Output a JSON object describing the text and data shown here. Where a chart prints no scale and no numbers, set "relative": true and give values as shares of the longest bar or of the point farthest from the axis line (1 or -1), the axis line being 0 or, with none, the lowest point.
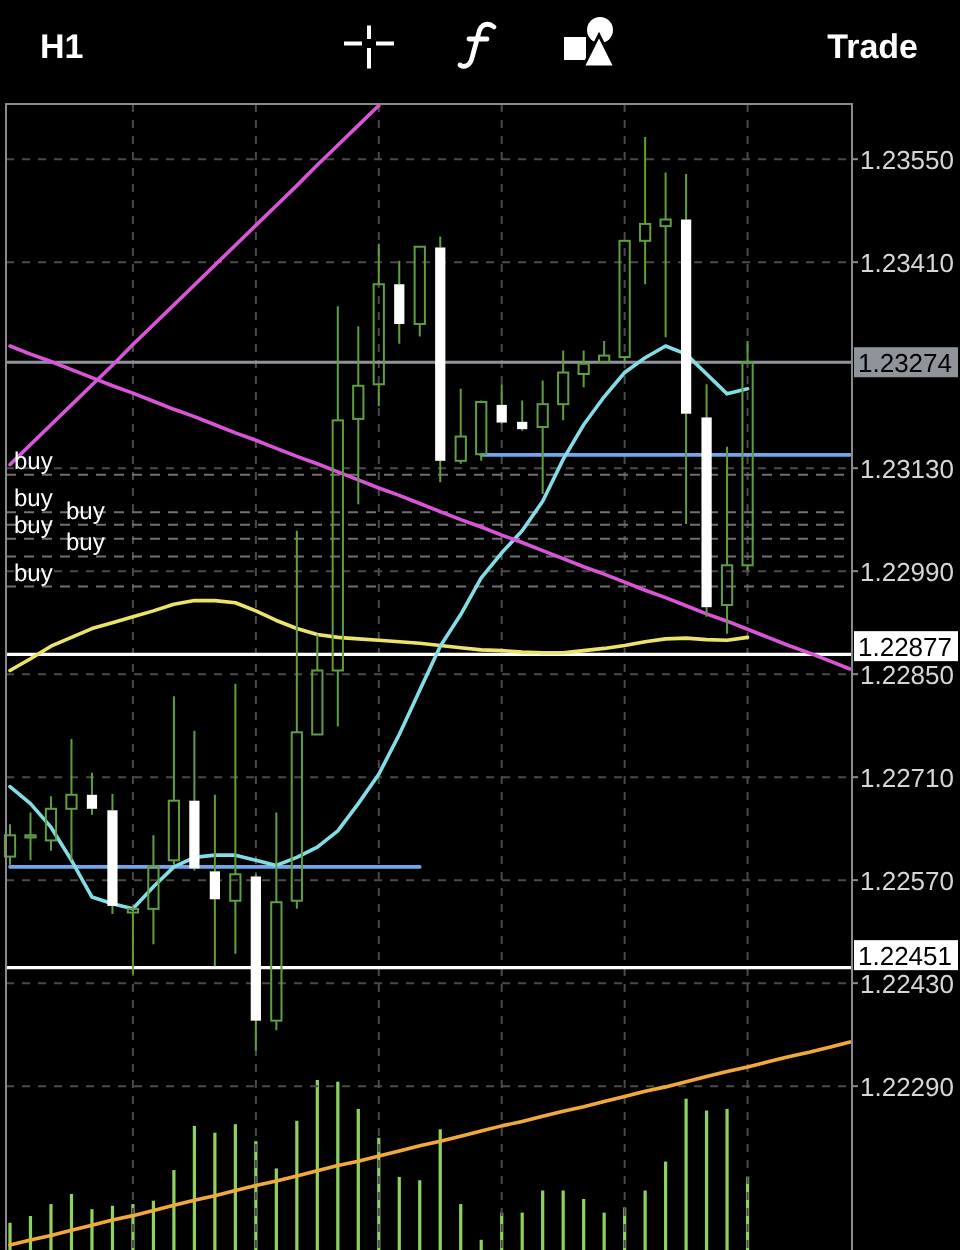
{
  "chart_data": [
    {
      "type": "candlestick",
      "title": "H1",
      "annotations": [
        "Trade"
      ],
      "categories": [
        null,
        null,
        null,
        null,
        null,
        null,
        null,
        null,
        null,
        null,
        null,
        null,
        null,
        null,
        null,
        null,
        null,
        null,
        null,
        null,
        null,
        null,
        null,
        null,
        null,
        null,
        null,
        null,
        null,
        null,
        null,
        null,
        null,
        null,
        null,
        null,
        null,
        null,
        null,
        null,
        null,
        null
      ],
      "ohlc": [
        [
          1.22602,
          1.22646,
          1.22591,
          1.22631
        ],
        [
          1.22628,
          1.22662,
          1.22597,
          1.22631
        ],
        [
          1.22624,
          1.22684,
          1.2261,
          1.22667
        ],
        [
          1.22667,
          1.22762,
          1.22597,
          1.22686
        ],
        [
          1.22686,
          1.22716,
          1.22659,
          1.22667
        ],
        [
          1.22665,
          1.22687,
          1.22524,
          1.22535
        ],
        [
          1.22526,
          1.22534,
          1.22442,
          1.22531
        ],
        [
          1.22531,
          1.22631,
          1.22483,
          1.22589
        ],
        [
          1.22597,
          1.2282,
          1.22591,
          1.22678
        ],
        [
          1.22678,
          1.22773,
          1.22583,
          1.22586
        ],
        [
          1.22582,
          1.22686,
          1.22453,
          1.22544
        ],
        [
          1.22542,
          1.22837,
          1.2247,
          1.22578
        ],
        [
          1.22575,
          1.22578,
          1.22338,
          1.22379
        ],
        [
          1.22379,
          1.22662,
          1.22366,
          1.2254
        ],
        [
          1.22542,
          1.23045,
          1.22531,
          1.22771
        ],
        [
          1.22768,
          1.22904,
          1.22768,
          1.22855
        ],
        [
          1.22855,
          1.2335,
          1.22779,
          1.23195
        ],
        [
          1.23197,
          1.23323,
          1.23081,
          1.23242
        ],
        [
          1.23244,
          1.23435,
          1.23214,
          1.2338
        ],
        [
          1.2338,
          1.23412,
          1.23299,
          1.23326
        ],
        [
          1.23326,
          1.23431,
          1.23309,
          1.23431
        ],
        [
          1.2343,
          1.23445,
          1.23111,
          1.2314
        ],
        [
          1.2314,
          1.23238,
          1.23136,
          1.23173
        ],
        [
          1.23149,
          1.23222,
          1.2314,
          1.2322
        ],
        [
          1.23216,
          1.23244,
          1.2319,
          1.23192
        ],
        [
          1.23193,
          1.23222,
          1.23181,
          1.23183
        ],
        [
          1.23186,
          1.23249,
          1.23095,
          1.23217
        ],
        [
          1.23217,
          1.2329,
          1.23195,
          1.2326
        ],
        [
          1.23258,
          1.2329,
          1.2324,
          1.23272
        ],
        [
          1.23274,
          1.23303,
          1.23272,
          1.23283
        ],
        [
          1.23281,
          1.23439,
          1.23276,
          1.23439
        ],
        [
          1.23439,
          1.2358,
          1.2338,
          1.23462
        ],
        [
          1.23459,
          1.23532,
          1.23308,
          1.23468
        ],
        [
          1.23468,
          1.2353,
          1.23054,
          1.23204
        ],
        [
          1.23199,
          1.23244,
          1.22928,
          1.22941
        ],
        [
          1.22944,
          1.23159,
          1.22905,
          1.22998
        ],
        [
          1.22998,
          1.23303,
          1.22991,
          1.23274
        ],
        null,
        null,
        null,
        null,
        null
      ],
      "color": "#5f9f3f",
      "colors": [
        "#5f9f3f",
        "#5f9f3f",
        "#5f9f3f",
        "#5f9f3f",
        "#ffffff",
        "#ffffff",
        "#5f9f3f",
        "#5f9f3f",
        "#5f9f3f",
        "#ffffff",
        "#ffffff",
        "#5f9f3f",
        "#ffffff",
        "#5f9f3f",
        "#5f9f3f",
        "#5f9f3f",
        "#5f9f3f",
        "#5f9f3f",
        "#5f9f3f",
        "#ffffff",
        "#5f9f3f",
        "#ffffff",
        "#5f9f3f",
        "#5f9f3f",
        "#ffffff",
        "#ffffff",
        "#5f9f3f",
        "#5f9f3f",
        "#5f9f3f",
        "#5f9f3f",
        "#5f9f3f",
        "#5f9f3f",
        "#5f9f3f",
        "#ffffff",
        "#ffffff",
        "#5f9f3f",
        "#5f9f3f",
        null,
        null,
        null,
        null,
        null
      ],
      "series": [
        {
          "type": "line",
          "color": "#6fa8ec",
          "values": [
            1.22588,
            1.22588,
            1.22588,
            1.22588,
            1.22588,
            1.22588,
            1.22588,
            1.22588,
            1.22588,
            1.22588,
            1.22588,
            1.22588,
            1.22588,
            1.22588,
            1.22588,
            1.22588,
            1.22588,
            1.22588,
            1.22588,
            1.22588,
            1.22588,
            null,
            null,
            null,
            null,
            null,
            null,
            null,
            null,
            null,
            null,
            null,
            null,
            null,
            null,
            null,
            null,
            null,
            null,
            null,
            null,
            null
          ]
        },
        {
          "type": "line",
          "color": "#6fa8ec",
          "values": [
            null,
            null,
            null,
            null,
            null,
            null,
            null,
            null,
            null,
            null,
            null,
            null,
            null,
            null,
            null,
            null,
            null,
            null,
            null,
            null,
            null,
            null,
            null,
            1.23148,
            1.23148,
            1.23148,
            1.23148,
            1.23148,
            1.23148,
            1.23148,
            1.23148,
            1.23148,
            1.23148,
            1.23148,
            1.23148,
            1.23148,
            1.23148,
            1.23148,
            1.23148,
            1.23148,
            1.23148,
            1.23148
          ]
        },
        {
          "type": "line",
          "color": "#ece36a",
          "values": [
            1.22855,
            1.22871,
            1.22888,
            1.229,
            1.22912,
            1.2292,
            1.22928,
            1.22936,
            1.22945,
            1.2295,
            1.2295,
            1.22947,
            1.22936,
            1.22923,
            1.22912,
            1.22904,
            1.229,
            1.22898,
            1.22896,
            1.22894,
            1.22892,
            1.22889,
            1.22886,
            1.22883,
            1.22882,
            1.2288,
            1.22879,
            1.22879,
            1.22882,
            1.22885,
            1.22889,
            1.22894,
            1.22898,
            1.22899,
            1.22897,
            1.22896,
            1.229,
            null,
            null,
            null,
            null,
            null
          ]
        },
        {
          "type": "line",
          "color": "#84dde6",
          "values": [
            1.22697,
            1.22674,
            1.22642,
            1.22597,
            1.22547,
            1.22538,
            1.22531,
            1.22561,
            1.22588,
            1.22601,
            1.22604,
            1.22604,
            1.22597,
            1.2259,
            1.22601,
            1.22615,
            1.22637,
            1.22674,
            1.22714,
            1.22768,
            1.22828,
            1.22888,
            1.22931,
            1.22981,
            1.23015,
            1.23045,
            1.23085,
            1.23142,
            1.23189,
            1.23227,
            1.2326,
            1.2328,
            1.23296,
            1.23285,
            1.23258,
            1.23231,
            1.23238,
            null,
            null,
            null,
            null,
            null
          ]
        },
        {
          "type": "line",
          "color": "#d855d8",
          "values": [
            1.23135,
            1.23162,
            1.23189,
            1.23216,
            1.23243,
            1.2327,
            1.23298,
            1.23325,
            1.23352,
            1.23379,
            1.23406,
            1.23433,
            1.2346,
            1.23487,
            1.23514,
            1.23542,
            1.23569,
            1.23596,
            1.23623,
            null,
            null,
            null,
            null,
            null,
            null,
            null,
            null,
            null,
            null,
            null,
            null,
            null,
            null,
            null,
            null,
            null,
            null,
            null,
            null,
            null,
            null,
            null
          ]
        },
        {
          "type": "line",
          "color": "#d855d8",
          "values": [
            1.23296,
            1.23285,
            1.23275,
            1.23264,
            1.23253,
            1.23242,
            1.23232,
            1.23221,
            1.2321,
            1.232,
            1.23189,
            1.23178,
            1.23168,
            1.23157,
            1.23146,
            1.23136,
            1.23125,
            1.23114,
            1.23103,
            1.23093,
            1.23082,
            1.23071,
            1.2306,
            1.2305,
            1.23039,
            1.23029,
            1.23018,
            1.23007,
            1.22996,
            1.22986,
            1.22975,
            1.22964,
            1.22954,
            1.22943,
            1.22932,
            1.22922,
            1.22911,
            1.229,
            1.22889,
            1.22879,
            1.22868,
            1.22857
          ]
        },
        {
          "type": "line",
          "color": "#f2a83a",
          "values": [
            1.22074,
            1.22081,
            1.22087,
            1.22094,
            1.22101,
            1.22108,
            1.22114,
            1.22121,
            1.22128,
            1.22135,
            1.22141,
            1.22148,
            1.22155,
            1.22161,
            1.22168,
            1.22175,
            1.22182,
            1.22188,
            1.22195,
            1.22202,
            1.22209,
            1.22215,
            1.22222,
            1.22229,
            1.22236,
            1.22242,
            1.22249,
            1.22256,
            1.22262,
            1.22269,
            1.22276,
            1.22283,
            1.22289,
            1.22296,
            1.22303,
            1.2231,
            1.22316,
            1.22323,
            1.2233,
            1.22336,
            1.22343,
            1.2235
          ]
        }
      ],
      "ylim": [
        1.2207,
        1.23625
      ],
      "yticks": [
        {
          "value": 1.2355,
          "label": "1.23550"
        },
        {
          "value": 1.2341,
          "label": "1.23410"
        },
        {
          "value": 1.2313,
          "label": "1.23130"
        },
        {
          "value": 1.2299,
          "label": "1.22990"
        },
        {
          "value": 1.2285,
          "label": "1.22850"
        },
        {
          "value": 1.2271,
          "label": "1.22710"
        },
        {
          "value": 1.2257,
          "label": "1.22570"
        },
        {
          "value": 1.2243,
          "label": "1.22430"
        },
        {
          "value": 1.2229,
          "label": "1.22290"
        }
      ],
      "grid": true,
      "tick_labels": "y",
      "ref_lines": [
        {
          "axis": "y",
          "value": 1.23274,
          "label": "1.23274",
          "color": "#8e9499",
          "line_style": "solid"
        },
        {
          "axis": "y",
          "value": 1.22877,
          "label": "1.22877",
          "color": "#ffffff",
          "line_style": "solid"
        },
        {
          "axis": "y",
          "value": 1.22451,
          "label": "1.22451",
          "color": "#ffffff",
          "line_style": "solid"
        },
        {
          "axis": "y",
          "value": 1.23121,
          "label": "buy",
          "color": "#707070",
          "line_style": "dashed"
        },
        {
          "axis": "y",
          "value": 1.2307,
          "label": "buy",
          "color": "#707070",
          "line_style": "dashed"
        },
        {
          "axis": "y",
          "value": 1.23053,
          "label": "buy",
          "color": "#707070",
          "line_style": "dashed"
        },
        {
          "axis": "y",
          "value": 1.23034,
          "label": "buy",
          "color": "#707070",
          "line_style": "dashed"
        },
        {
          "axis": "y",
          "value": 1.2301,
          "label": "buy",
          "color": "#707070",
          "line_style": "dashed"
        },
        {
          "axis": "y",
          "value": 1.22969,
          "label": "buy",
          "color": "#707070",
          "line_style": "dashed"
        }
      ]
    },
    {
      "type": "bar",
      "relative": true,
      "tick_labels": false,
      "color": "#8fd35f",
      "categories": [
        null,
        null,
        null,
        null,
        null,
        null,
        null,
        null,
        null,
        null,
        null,
        null,
        null,
        null,
        null,
        null,
        null,
        null,
        null,
        null,
        null,
        null,
        null,
        null,
        null,
        null,
        null,
        null,
        null,
        null,
        null,
        null,
        null,
        null,
        null,
        null,
        null,
        null,
        null,
        null,
        null,
        null
      ],
      "values": [
        0.16,
        0.2,
        0.27,
        0.33,
        0.24,
        0.26,
        0.27,
        0.29,
        0.47,
        0.73,
        0.69,
        0.74,
        0.64,
        0.48,
        0.76,
        1,
        0.99,
        0.83,
        0.66,
        0.43,
        0.41,
        0.71,
        0.27,
        0.06,
        0.22,
        0.22,
        0.35,
        0.35,
        0.3,
        0.22,
        0.25,
        0.35,
        0.52,
        0.89,
        0.82,
        0.83,
        0.43,
        null,
        null,
        null,
        null,
        null
      ]
    }
  ]
}
